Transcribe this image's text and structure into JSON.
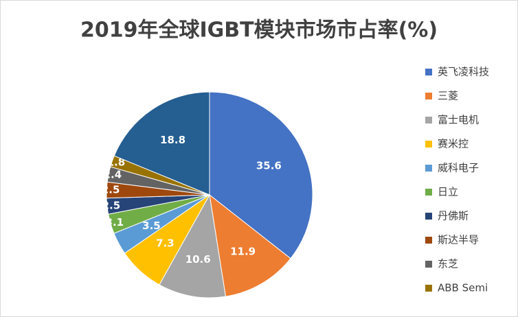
{
  "chart_data": {
    "type": "pie",
    "title": "2019年全球IGBT模块市场市占率(%)",
    "categories": [
      "英飞凌科技",
      "三菱",
      "富士电机",
      "赛米控",
      "威科电子",
      "日立",
      "丹佛斯",
      "斯达半导",
      "东芝",
      "ABB Semi",
      null
    ],
    "values": [
      35.6,
      11.9,
      10.6,
      7.3,
      3.5,
      3.1,
      2.5,
      2.5,
      2.4,
      1.8,
      18.8
    ],
    "colors": [
      "#4472c4",
      "#ed7d31",
      "#a5a5a5",
      "#ffc000",
      "#5b9bd5",
      "#70ad47",
      "#264478",
      "#9e480e",
      "#636363",
      "#997300",
      "#255e91"
    ],
    "legend": "right"
  }
}
